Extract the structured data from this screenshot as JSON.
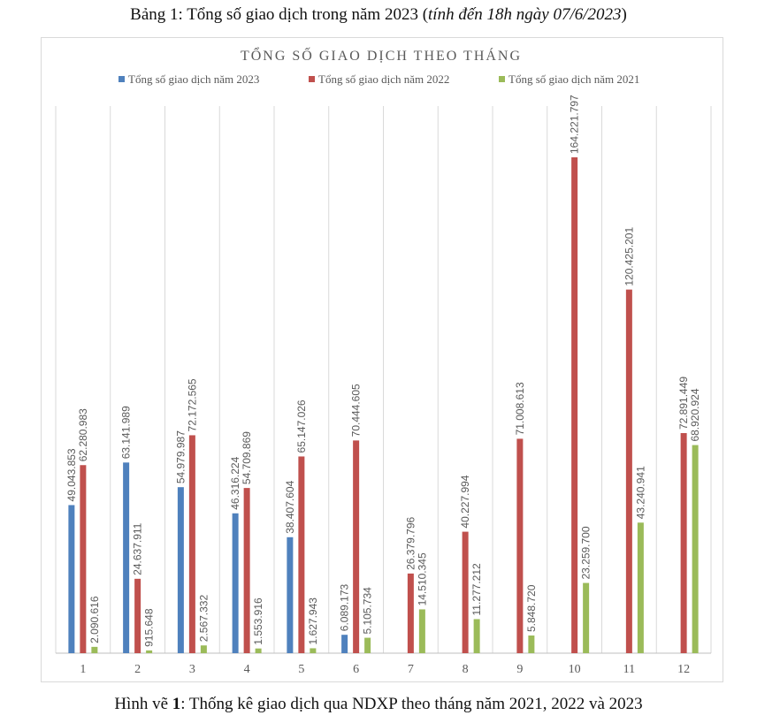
{
  "caption_top": {
    "prefix": "Bảng 1: Tổng số giao dịch trong năm 2023 (",
    "italic": "tính đến 18h ngày 07/6/2023",
    "suffix": ")"
  },
  "caption_bottom": {
    "prefix": "Hình vẽ ",
    "bold": "1",
    "suffix": ": Thống kê giao dịch qua NDXP theo tháng năm 2021, 2022 và 2023"
  },
  "chart_data": {
    "type": "bar",
    "title": "TỔNG SỐ GIAO DỊCH THEO THÁNG",
    "categories": [
      "1",
      "2",
      "3",
      "4",
      "5",
      "6",
      "7",
      "8",
      "9",
      "10",
      "11",
      "12"
    ],
    "legend_position": "top",
    "grid": "vertical-category-separators",
    "ylim": [
      0,
      180000000
    ],
    "series": [
      {
        "name": "Tổng số giao dịch năm 2023",
        "color": "#4f81bd",
        "values": [
          49043853,
          63141989,
          54979987,
          46316224,
          38407604,
          6089173,
          null,
          null,
          null,
          null,
          null,
          null
        ],
        "labels": [
          "49.043.853",
          "63.141.989",
          "54.979.987",
          "46.316.224",
          "38.407.604",
          "6.089.173",
          "",
          "",
          "",
          "",
          "",
          ""
        ]
      },
      {
        "name": "Tổng số giao dịch năm 2022",
        "color": "#c0504d",
        "values": [
          62280983,
          24637911,
          72172565,
          54709869,
          65147026,
          70444605,
          26379796,
          40227994,
          71008613,
          164221797,
          120425201,
          72891449
        ],
        "labels": [
          "62.280.983",
          "24.637.911",
          "72.172.565",
          "54.709.869",
          "65.147.026",
          "70.444.605",
          "26.379.796",
          "40.227.994",
          "71.008.613",
          "164.221.797",
          "120.425.201",
          "72.891.449"
        ]
      },
      {
        "name": "Tổng số giao dịch năm 2021",
        "color": "#9bbb59",
        "values": [
          2090616,
          915648,
          2567332,
          1553916,
          1627943,
          5105734,
          14510345,
          11277212,
          5848720,
          23259700,
          43240941,
          68920924
        ],
        "labels": [
          "2.090.616",
          "915.648",
          "2.567.332",
          "1.553.916",
          "1.627.943",
          "5.105.734",
          "14.510.345",
          "11.277.212",
          "5.848.720",
          "23.259.700",
          "43.240.941",
          "68.920.924"
        ]
      }
    ]
  }
}
